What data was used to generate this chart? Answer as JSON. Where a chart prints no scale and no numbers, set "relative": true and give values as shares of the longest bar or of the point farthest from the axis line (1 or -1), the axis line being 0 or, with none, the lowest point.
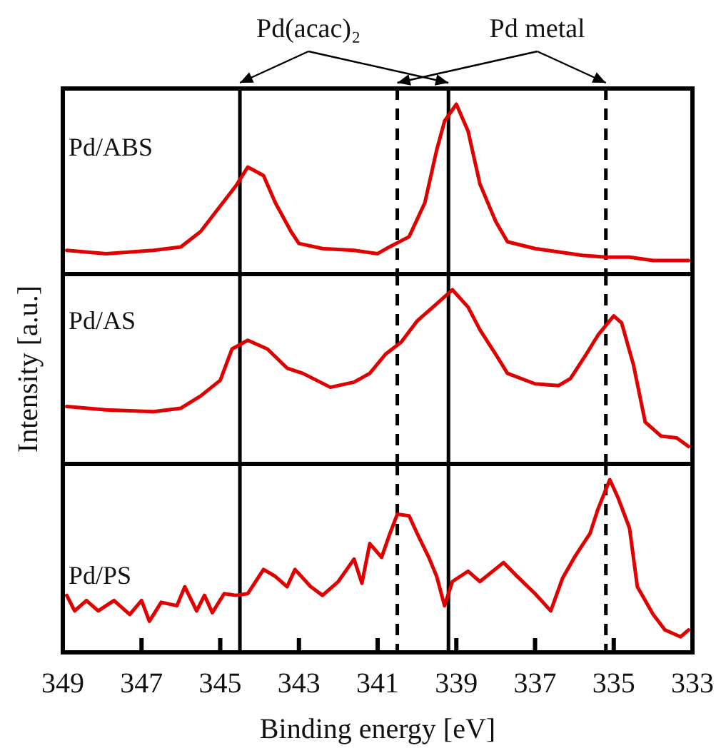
{
  "chart_data": [
    {
      "type": "line",
      "relative": true,
      "xlim": [
        349,
        333
      ],
      "tick_labels": false,
      "annotations": [
        "Pd(acac)₂",
        "Pd metal"
      ],
      "ref_lines": [
        {
          "axis": "x",
          "value": 344.5,
          "line_style": "solid",
          "color": "#000000"
        },
        {
          "axis": "x",
          "value": 339.2,
          "line_style": "solid",
          "color": "#000000"
        },
        {
          "axis": "x",
          "value": 340.5,
          "line_style": "dashed",
          "color": "#000000"
        },
        {
          "axis": "x",
          "value": 335.2,
          "line_style": "dashed",
          "color": "#000000"
        }
      ],
      "series": [
        {
          "name": "Pd/ABS",
          "color": "#e00000",
          "x": [
            348.9,
            347.9,
            346.7,
            346.0,
            345.5,
            345.0,
            344.6,
            344.3,
            343.9,
            343.6,
            343.2,
            343.0,
            342.4,
            341.6,
            341.0,
            340.7,
            340.2,
            339.8,
            339.5,
            339.3,
            339.0,
            338.7,
            338.4,
            338.0,
            337.7,
            337.0,
            336.4,
            335.8,
            335.2,
            334.6,
            334.0,
            333.1
          ],
          "values": [
            0.14,
            0.12,
            0.14,
            0.16,
            0.25,
            0.4,
            0.52,
            0.63,
            0.58,
            0.42,
            0.25,
            0.18,
            0.15,
            0.14,
            0.12,
            0.16,
            0.22,
            0.42,
            0.73,
            0.9,
            1,
            0.84,
            0.53,
            0.31,
            0.19,
            0.15,
            0.13,
            0.11,
            0.1,
            0.1,
            0.08,
            0.08
          ]
        }
      ]
    },
    {
      "type": "line",
      "relative": true,
      "xlim": [
        349,
        333
      ],
      "tick_labels": false,
      "ylabel": "Intensity [a.u.]",
      "ref_lines": [
        {
          "axis": "x",
          "value": 344.5,
          "line_style": "solid",
          "color": "#000000"
        },
        {
          "axis": "x",
          "value": 339.2,
          "line_style": "solid",
          "color": "#000000"
        },
        {
          "axis": "x",
          "value": 340.5,
          "line_style": "dashed",
          "color": "#000000"
        },
        {
          "axis": "x",
          "value": 335.2,
          "line_style": "dashed",
          "color": "#000000"
        }
      ],
      "series": [
        {
          "name": "Pd/AS",
          "color": "#e00000",
          "x": [
            348.9,
            347.9,
            346.7,
            346.0,
            345.5,
            345.0,
            344.7,
            344.3,
            343.8,
            343.3,
            342.9,
            342.2,
            341.6,
            341.2,
            340.8,
            340.4,
            340.0,
            339.5,
            339.1,
            338.7,
            338.4,
            338.0,
            337.7,
            337.0,
            336.4,
            336.1,
            335.7,
            335.4,
            335.0,
            334.8,
            334.5,
            334.2,
            333.8,
            333.4,
            333.1
          ],
          "values": [
            0.33,
            0.31,
            0.3,
            0.32,
            0.39,
            0.48,
            0.66,
            0.71,
            0.66,
            0.55,
            0.52,
            0.44,
            0.47,
            0.52,
            0.63,
            0.7,
            0.82,
            0.92,
            1,
            0.9,
            0.77,
            0.63,
            0.52,
            0.46,
            0.45,
            0.49,
            0.63,
            0.74,
            0.85,
            0.81,
            0.57,
            0.24,
            0.16,
            0.15,
            0.1
          ]
        }
      ]
    },
    {
      "type": "line",
      "relative": true,
      "xlim": [
        349,
        333
      ],
      "tick_labels": "x",
      "xlabel": "Binding energy [eV]",
      "xticks": [
        349,
        347,
        345,
        343,
        341,
        339,
        337,
        335,
        333
      ],
      "ref_lines": [
        {
          "axis": "x",
          "value": 344.5,
          "line_style": "solid",
          "color": "#000000"
        },
        {
          "axis": "x",
          "value": 339.2,
          "line_style": "solid",
          "color": "#000000"
        },
        {
          "axis": "x",
          "value": 340.5,
          "line_style": "dashed",
          "color": "#000000"
        },
        {
          "axis": "x",
          "value": 335.2,
          "line_style": "dashed",
          "color": "#000000"
        }
      ],
      "series": [
        {
          "name": "Pd/PS",
          "color": "#e00000",
          "x": [
            348.9,
            348.7,
            348.4,
            348.1,
            347.7,
            347.3,
            347.0,
            346.8,
            346.5,
            346.1,
            345.9,
            345.6,
            345.4,
            345.2,
            344.9,
            344.6,
            344.3,
            343.9,
            343.6,
            343.3,
            343.1,
            342.7,
            342.4,
            342.0,
            341.6,
            341.4,
            341.2,
            340.9,
            340.7,
            340.5,
            340.2,
            340.0,
            339.7,
            339.5,
            339.3,
            339.1,
            338.7,
            338.4,
            337.8,
            337.5,
            337.0,
            336.6,
            336.3,
            336.0,
            335.6,
            335.4,
            335.1,
            334.9,
            334.6,
            334.4,
            334.0,
            333.7,
            333.3,
            333.1
          ],
          "values": [
            0.33,
            0.24,
            0.3,
            0.24,
            0.3,
            0.22,
            0.3,
            0.18,
            0.29,
            0.27,
            0.38,
            0.24,
            0.33,
            0.23,
            0.34,
            0.33,
            0.34,
            0.48,
            0.44,
            0.38,
            0.48,
            0.38,
            0.33,
            0.41,
            0.54,
            0.4,
            0.63,
            0.55,
            0.68,
            0.8,
            0.79,
            0.69,
            0.55,
            0.44,
            0.27,
            0.41,
            0.47,
            0.41,
            0.52,
            0.45,
            0.34,
            0.24,
            0.43,
            0.55,
            0.69,
            0.83,
            1,
            0.9,
            0.72,
            0.38,
            0.22,
            0.13,
            0.09,
            0.13
          ]
        }
      ]
    }
  ]
}
